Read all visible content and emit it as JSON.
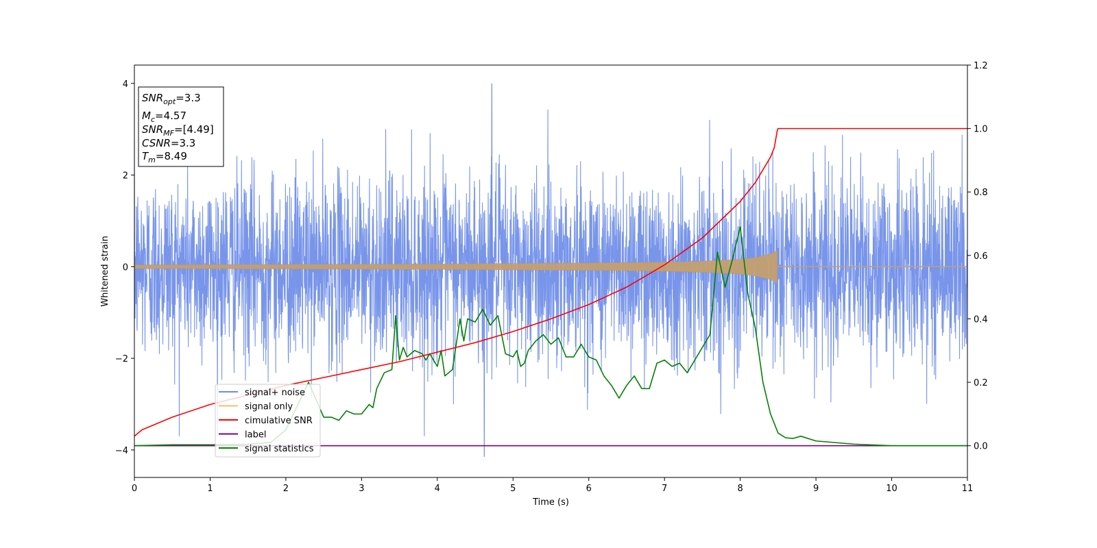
{
  "chart_data": {
    "type": "line",
    "title": "",
    "xlabel": "Time (s)",
    "ylabel": "Whitened strain",
    "xlim": [
      0,
      11
    ],
    "ylim": [
      -4.6,
      4.4
    ],
    "y2lim": [
      -0.1,
      1.2
    ],
    "x_ticks": [
      "0",
      "1",
      "2",
      "3",
      "4",
      "5",
      "6",
      "7",
      "8",
      "9",
      "10",
      "11"
    ],
    "y_ticks": [
      "4",
      "2",
      "0",
      "−2",
      "−4"
    ],
    "y2_ticks": [
      "1.2",
      "1.0",
      "0.8",
      "0.6",
      "0.4",
      "0.2",
      "0.0"
    ],
    "grid": false,
    "legend_position": "lower-left",
    "legend": [
      {
        "label": "signal+ noise",
        "color": "#6d8ce8"
      },
      {
        "label": "signal only",
        "color": "#f7bd6b"
      },
      {
        "label": "cimulative SNR",
        "color": "#ff0000"
      },
      {
        "label": "label",
        "color": "#800080"
      },
      {
        "label": "signal statistics",
        "color": "#008000"
      }
    ],
    "info_box": {
      "snr_opt": {
        "sym": "SNR",
        "sub": "opt",
        "val": "=3.3"
      },
      "mc": {
        "sym": "M",
        "sub": "c",
        "val": "=4.57"
      },
      "snr_mf": {
        "sym": "SNR",
        "sub": "MF",
        "val": "=[4.49]"
      },
      "csnr": {
        "sym": "CSNR",
        "val": "=3.3"
      },
      "tm": {
        "sym": "T",
        "sub": "m",
        "val": "=8.49"
      }
    },
    "series": [
      {
        "name": "signal+ noise",
        "axis": "left",
        "color": "#6d8ce8",
        "noise_std": 1.0,
        "noise_extremes": {
          "max": 4.0,
          "min": -4.15
        }
      },
      {
        "name": "signal only",
        "axis": "left",
        "color": "#f7bd6b",
        "amplitude": {
          "x": [
            0,
            2,
            4,
            6,
            7,
            7.5,
            8.0,
            8.2,
            8.4,
            8.49,
            8.5
          ],
          "y": [
            0.04,
            0.05,
            0.06,
            0.08,
            0.1,
            0.12,
            0.16,
            0.2,
            0.28,
            0.36,
            0
          ]
        }
      },
      {
        "name": "cimulative SNR",
        "axis": "right",
        "color": "#ff0000",
        "x": [
          0,
          0.1,
          0.3,
          0.5,
          1,
          1.5,
          2,
          2.5,
          3,
          3.5,
          4,
          4.5,
          5,
          5.5,
          6,
          6.5,
          7,
          7.5,
          8,
          8.2,
          8.4,
          8.45,
          8.49,
          8.5,
          11
        ],
        "y": [
          0.03,
          0.05,
          0.07,
          0.09,
          0.13,
          0.16,
          0.19,
          0.215,
          0.24,
          0.265,
          0.295,
          0.325,
          0.36,
          0.4,
          0.445,
          0.5,
          0.57,
          0.655,
          0.77,
          0.83,
          0.91,
          0.94,
          0.995,
          1.0,
          1.0
        ]
      },
      {
        "name": "label",
        "axis": "right",
        "color": "#800080",
        "x": [
          0,
          11
        ],
        "y": [
          0,
          0
        ]
      },
      {
        "name": "signal statistics",
        "axis": "right",
        "color": "#008000",
        "x": [
          0,
          0.5,
          1.0,
          1.5,
          1.8,
          2.0,
          2.3,
          2.5,
          2.6,
          2.7,
          2.8,
          2.9,
          3.0,
          3.1,
          3.15,
          3.2,
          3.3,
          3.4,
          3.45,
          3.5,
          3.55,
          3.6,
          3.7,
          3.8,
          3.85,
          3.9,
          4.0,
          4.05,
          4.1,
          4.2,
          4.3,
          4.35,
          4.4,
          4.5,
          4.6,
          4.7,
          4.8,
          4.9,
          5.0,
          5.05,
          5.1,
          5.15,
          5.2,
          5.3,
          5.4,
          5.5,
          5.6,
          5.7,
          5.8,
          5.9,
          6.0,
          6.1,
          6.2,
          6.3,
          6.4,
          6.5,
          6.6,
          6.7,
          6.8,
          6.9,
          7.0,
          7.1,
          7.2,
          7.3,
          7.4,
          7.5,
          7.6,
          7.7,
          7.8,
          7.9,
          8.0,
          8.1,
          8.2,
          8.3,
          8.4,
          8.5,
          8.6,
          8.7,
          8.8,
          9.0,
          9.5,
          10.0,
          11.0
        ],
        "y": [
          0,
          0.003,
          0.003,
          0.005,
          0.01,
          0.05,
          0.2,
          0.09,
          0.09,
          0.08,
          0.11,
          0.1,
          0.1,
          0.13,
          0.12,
          0.18,
          0.23,
          0.24,
          0.41,
          0.27,
          0.31,
          0.28,
          0.3,
          0.29,
          0.27,
          0.29,
          0.25,
          0.3,
          0.22,
          0.24,
          0.4,
          0.33,
          0.4,
          0.39,
          0.43,
          0.38,
          0.41,
          0.29,
          0.28,
          0.3,
          0.25,
          0.26,
          0.3,
          0.33,
          0.35,
          0.32,
          0.34,
          0.28,
          0.28,
          0.32,
          0.28,
          0.27,
          0.22,
          0.19,
          0.15,
          0.19,
          0.22,
          0.18,
          0.18,
          0.26,
          0.27,
          0.25,
          0.26,
          0.23,
          0.27,
          0.31,
          0.35,
          0.61,
          0.5,
          0.59,
          0.69,
          0.48,
          0.37,
          0.2,
          0.1,
          0.04,
          0.025,
          0.023,
          0.03,
          0.015,
          0.005,
          0,
          0
        ]
      }
    ]
  }
}
